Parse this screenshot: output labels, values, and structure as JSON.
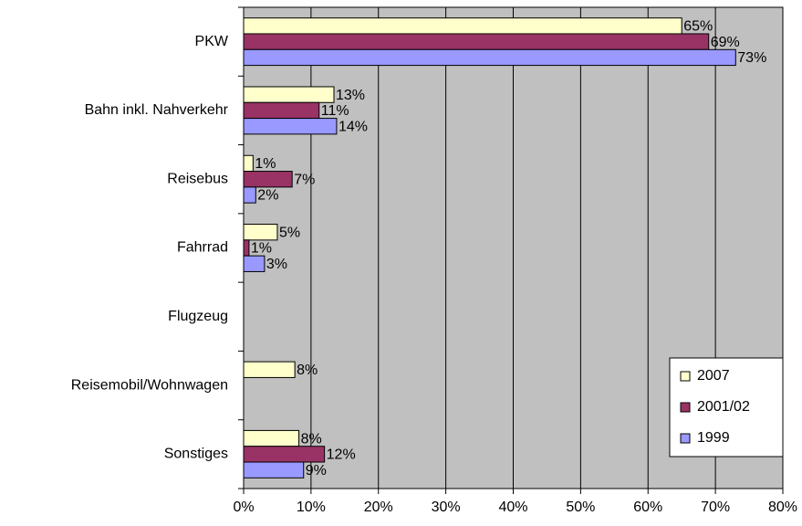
{
  "chart_data": {
    "type": "bar",
    "orientation": "horizontal",
    "categories": [
      "PKW",
      "Bahn inkl. Nahverkehr",
      "Reisebus",
      "Fahrrad",
      "Flugzeug",
      "Reisemobil/Wohnwagen",
      "Sonstiges"
    ],
    "series": [
      {
        "name": "2007",
        "color": "#ffffcc",
        "values": [
          65,
          13.4,
          1.4,
          5,
          null,
          7.6,
          8.2
        ],
        "value_labels": [
          "65%",
          "13%",
          "1%",
          "5%",
          null,
          "8%",
          "8%"
        ]
      },
      {
        "name": "2001/02",
        "color": "#993366",
        "values": [
          69,
          11.2,
          7.2,
          0.8,
          null,
          null,
          12
        ],
        "value_labels": [
          "69%",
          "11%",
          "7%",
          "1%",
          null,
          null,
          "12%"
        ]
      },
      {
        "name": "1999",
        "color": "#9999ff",
        "values": [
          73,
          13.8,
          1.8,
          3.1,
          null,
          null,
          8.9
        ],
        "value_labels": [
          "73%",
          "14%",
          "2%",
          "3%",
          null,
          null,
          "9%"
        ]
      }
    ],
    "xlim": [
      0,
      80
    ],
    "xticks": [
      {
        "value": 0,
        "label": "0%"
      },
      {
        "value": 10,
        "label": "10%"
      },
      {
        "value": 20,
        "label": "20%"
      },
      {
        "value": 30,
        "label": "30%"
      },
      {
        "value": 40,
        "label": "40%"
      },
      {
        "value": 50,
        "label": "50%"
      },
      {
        "value": 60,
        "label": "60%"
      },
      {
        "value": 70,
        "label": "70%"
      },
      {
        "value": 80,
        "label": "80%"
      }
    ],
    "grid": true,
    "legend": "lower right",
    "plot_background": "#c0c0c0"
  }
}
